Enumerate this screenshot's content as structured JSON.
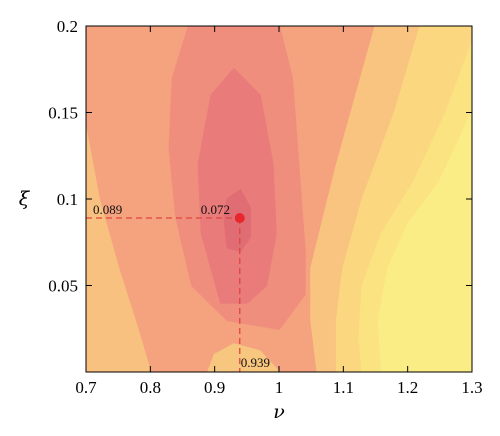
{
  "chart_data": {
    "type": "contour",
    "xlabel": "ν",
    "ylabel": "ξ",
    "xlim": [
      0.7,
      1.3
    ],
    "ylim": [
      0.0,
      0.2
    ],
    "xticks": [
      "0.7",
      "0.8",
      "0.9",
      "1",
      "1.1",
      "1.2",
      "1.3"
    ],
    "yticks": [
      "0.05",
      "0.1",
      "0.15",
      "0.2"
    ],
    "levels": [
      {
        "color": "#f5a27f",
        "polygon": [
          [
            0.7,
            0.0
          ],
          [
            1.06,
            0.0
          ],
          [
            1.05,
            0.03
          ],
          [
            1.05,
            0.06
          ],
          [
            1.07,
            0.09
          ],
          [
            1.09,
            0.12
          ],
          [
            1.12,
            0.16
          ],
          [
            1.15,
            0.2
          ],
          [
            0.7,
            0.2
          ]
        ]
      },
      {
        "color": "#ef8e7d",
        "polygon": [
          [
            0.865,
            0.05
          ],
          [
            0.84,
            0.09
          ],
          [
            0.83,
            0.13
          ],
          [
            0.835,
            0.17
          ],
          [
            0.86,
            0.2
          ],
          [
            1.0,
            0.2
          ],
          [
            1.02,
            0.17
          ],
          [
            1.03,
            0.12
          ],
          [
            1.04,
            0.07
          ],
          [
            1.04,
            0.045
          ],
          [
            1.0,
            0.025
          ],
          [
            0.92,
            0.03
          ]
        ]
      },
      {
        "color": "#e97b7a",
        "polygon": [
          [
            0.91,
            0.04
          ],
          [
            0.88,
            0.08
          ],
          [
            0.875,
            0.12
          ],
          [
            0.895,
            0.16
          ],
          [
            0.93,
            0.175
          ],
          [
            0.97,
            0.16
          ],
          [
            0.99,
            0.12
          ],
          [
            0.995,
            0.08
          ],
          [
            0.98,
            0.05
          ],
          [
            0.95,
            0.04
          ]
        ]
      },
      {
        "color": "#e06d74",
        "polygon": [
          [
            0.92,
            0.072
          ],
          [
            0.915,
            0.09
          ],
          [
            0.92,
            0.1
          ],
          [
            0.94,
            0.105
          ],
          [
            0.955,
            0.095
          ],
          [
            0.955,
            0.078
          ],
          [
            0.94,
            0.07
          ]
        ]
      },
      {
        "color": "#f8c47f",
        "polygon": [
          [
            1.06,
            0.0
          ],
          [
            1.3,
            0.0
          ],
          [
            1.3,
            0.2
          ],
          [
            1.15,
            0.2
          ],
          [
            1.12,
            0.16
          ],
          [
            1.09,
            0.12
          ],
          [
            1.07,
            0.09
          ],
          [
            1.05,
            0.06
          ],
          [
            1.05,
            0.03
          ]
        ]
      },
      {
        "color": "#fbd880",
        "polygon": [
          [
            1.09,
            0.0
          ],
          [
            1.3,
            0.0
          ],
          [
            1.3,
            0.2
          ],
          [
            1.22,
            0.2
          ],
          [
            1.18,
            0.15
          ],
          [
            1.13,
            0.1
          ],
          [
            1.1,
            0.06
          ],
          [
            1.09,
            0.03
          ]
        ]
      },
      {
        "color": "#fbe381",
        "polygon": [
          [
            1.13,
            0.0
          ],
          [
            1.3,
            0.0
          ],
          [
            1.3,
            0.19
          ],
          [
            1.26,
            0.15
          ],
          [
            1.21,
            0.11
          ],
          [
            1.16,
            0.08
          ],
          [
            1.13,
            0.05
          ],
          [
            1.125,
            0.02
          ]
        ]
      },
      {
        "color": "#fbed85",
        "polygon": [
          [
            1.16,
            0.0
          ],
          [
            1.3,
            0.0
          ],
          [
            1.3,
            0.15
          ],
          [
            1.25,
            0.11
          ],
          [
            1.2,
            0.085
          ],
          [
            1.17,
            0.06
          ],
          [
            1.155,
            0.03
          ]
        ]
      },
      {
        "color": "#f8c17f",
        "polygon": [
          [
            0.7,
            0.0
          ],
          [
            0.8,
            0.0
          ],
          [
            0.78,
            0.025
          ],
          [
            0.75,
            0.06
          ],
          [
            0.72,
            0.1
          ],
          [
            0.7,
            0.14
          ]
        ]
      },
      {
        "color": "#f8c77f",
        "polygon": [
          [
            0.89,
            0.0
          ],
          [
            1.0,
            0.0
          ],
          [
            0.97,
            0.012
          ],
          [
            0.93,
            0.016
          ],
          [
            0.9,
            0.01
          ]
        ]
      }
    ],
    "optimum": {
      "x": 0.939,
      "y": 0.089,
      "value": 0.072
    },
    "annotations": {
      "x_label": "0.939",
      "y_label": "0.089",
      "value_label": "0.072"
    },
    "colors": {
      "marker": "#e8262e",
      "guide": "#e0453f"
    }
  }
}
